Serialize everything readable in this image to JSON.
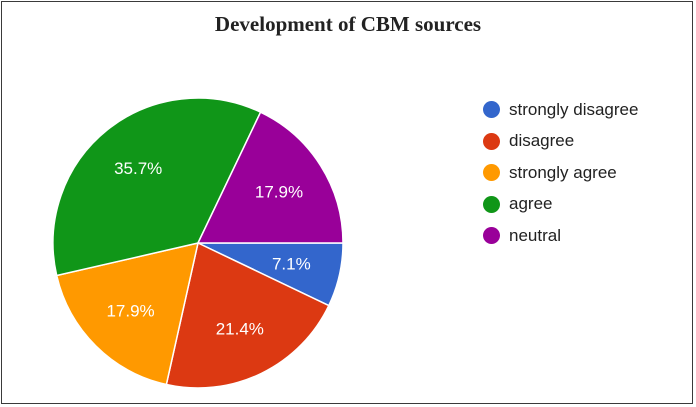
{
  "chart_data": {
    "type": "pie",
    "title": "Development of CBM sources",
    "slices": [
      {
        "label": "strongly disagree",
        "value": 7.1,
        "display": "7.1%",
        "color": "#3366cc"
      },
      {
        "label": "disagree",
        "value": 21.4,
        "display": "21.4%",
        "color": "#dc3912"
      },
      {
        "label": "strongly agree",
        "value": 17.9,
        "display": "17.9%",
        "color": "#ff9900"
      },
      {
        "label": "agree",
        "value": 35.7,
        "display": "35.7%",
        "color": "#109618"
      },
      {
        "label": "neutral",
        "value": 17.9,
        "display": "17.9%",
        "color": "#990099"
      }
    ],
    "legend": "right"
  }
}
